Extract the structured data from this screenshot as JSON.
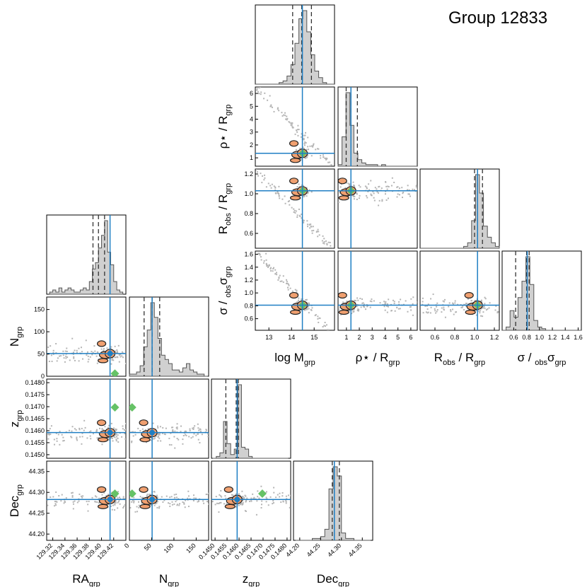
{
  "title": "Group 12833",
  "colors": {
    "truth": "#1f7fc4",
    "hist": "#d0d0d0",
    "hist_edge": "#555555",
    "contour_fill": "#f0a070",
    "contour_edge": "#222222",
    "scatter": "#b5b5b5",
    "group_marker": "#66c266"
  },
  "left_corner": {
    "params": [
      {
        "key": "ra",
        "label": "RA",
        "sub": "grp",
        "lim": [
          129.31,
          129.44
        ],
        "ticks": [
          129.32,
          129.34,
          129.36,
          129.38,
          129.4,
          129.42
        ],
        "tick_labels": [
          "129.32",
          "129.34",
          "129.36",
          "129.38",
          "129.40",
          "129.42"
        ],
        "truth": 129.414,
        "quantiles": [
          129.386,
          129.395,
          129.405
        ],
        "group": 129.422
      },
      {
        "key": "n",
        "label": "N",
        "sub": "grp",
        "lim": [
          0,
          178
        ],
        "ticks": [
          0,
          50,
          100,
          150
        ],
        "tick_labels": [
          "0",
          "50",
          "100",
          "150"
        ],
        "truth": 51,
        "quantiles": [
          33,
          51,
          68
        ],
        "group": 6
      },
      {
        "key": "z",
        "label": "z",
        "sub": "grp",
        "lim": [
          0.14485,
          0.14815
        ],
        "ticks": [
          0.145,
          0.1455,
          0.146,
          0.1465,
          0.147,
          0.1475,
          0.148
        ],
        "tick_labels": [
          "0.1450",
          "0.1455",
          "0.1460",
          "0.1465",
          "0.1470",
          "0.1475",
          "0.1480"
        ],
        "truth": 0.14592,
        "quantiles": [
          0.14545,
          0.14588,
          0.14597
        ],
        "group": 0.14697
      },
      {
        "key": "dec",
        "label": "Dec",
        "sub": "grp",
        "lim": [
          44.185,
          44.375
        ],
        "ticks": [
          44.2,
          44.25,
          44.3,
          44.35
        ],
        "tick_labels": [
          "44.20",
          "44.25",
          "44.30",
          "44.35"
        ],
        "truth": 44.283,
        "quantiles": [
          44.278,
          44.283,
          44.295
        ],
        "group": 44.297
      }
    ]
  },
  "right_corner": {
    "params": [
      {
        "key": "logm",
        "label": "log M",
        "sub": "grp",
        "sym": "",
        "lim": [
          12.4,
          15.9
        ],
        "ticks": [
          13,
          14,
          15
        ],
        "tick_labels": [
          "13",
          "14",
          "15"
        ],
        "truth": 14.48,
        "quantiles": [
          14.05,
          14.45,
          14.88
        ],
        "group": 14.5
      },
      {
        "key": "rho",
        "label": " / R",
        "sub": "grp",
        "sym": "ρ⋆",
        "lim": [
          0.35,
          6.5
        ],
        "ticks": [
          1,
          2,
          3,
          4,
          5,
          6
        ],
        "tick_labels": [
          "1",
          "2",
          "3",
          "4",
          "5",
          "6"
        ],
        "truth": 1.35,
        "quantiles": [
          0.98,
          1.35,
          1.85
        ],
        "group": 1.35
      },
      {
        "key": "robs",
        "label": "R",
        "sub": "obs",
        "label2": " / R",
        "sub2": "grp",
        "sym": "",
        "lim": [
          0.45,
          1.25
        ],
        "ticks": [
          0.6,
          0.8,
          1.0,
          1.2
        ],
        "tick_labels": [
          "0.6",
          "0.8",
          "1.0",
          "1.2"
        ],
        "truth": 1.03,
        "quantiles": [
          1.0,
          1.03,
          1.08
        ],
        "group": 1.03
      },
      {
        "key": "sobs",
        "label": " / ",
        "sub": "obs",
        "sym": "σ",
        "lim": [
          0.42,
          1.65
        ],
        "ticks": [
          0.6,
          0.8,
          1.0,
          1.2,
          1.4,
          1.6
        ],
        "tick_labels": [
          "0.6",
          "0.8",
          "1.0",
          "1.2",
          "1.4",
          "1.6"
        ],
        "truth": 0.81,
        "quantiles": [
          0.63,
          0.8,
          0.84
        ],
        "group": 0.81
      }
    ]
  },
  "chart_data": [
    {
      "type": "scatter",
      "title": "Group 12833",
      "description_kind": "corner plot (posterior) — grp position",
      "params": [
        "RA_grp",
        "N_grp",
        "z_grp",
        "Dec_grp"
      ],
      "histograms": {
        "RA_grp": {
          "bins": [
            129.315,
            129.32,
            129.325,
            129.33,
            129.335,
            129.34,
            129.345,
            129.35,
            129.355,
            129.36,
            129.365,
            129.37,
            129.375,
            129.38,
            129.385,
            129.39,
            129.395,
            129.4,
            129.405,
            129.41,
            129.415,
            129.42,
            129.425,
            129.43,
            129.435
          ],
          "counts": [
            1,
            2,
            1,
            3,
            1,
            2,
            3,
            2,
            1,
            1,
            2,
            3,
            2,
            6,
            12,
            15,
            22,
            28,
            35,
            20,
            14,
            6,
            2,
            1
          ]
        },
        "N_grp": {
          "bins": [
            0,
            8,
            16,
            24,
            32,
            40,
            48,
            56,
            64,
            72,
            80,
            88,
            96,
            104,
            112,
            120,
            128,
            136,
            144,
            152,
            160,
            168,
            176
          ],
          "counts": [
            1,
            1,
            2,
            5,
            14,
            22,
            35,
            28,
            18,
            10,
            8,
            6,
            3,
            3,
            2,
            4,
            6,
            3,
            2,
            1,
            1,
            0
          ]
        },
        "z_grp": {
          "bins": [
            0.1449,
            0.14505,
            0.1452,
            0.14535,
            0.1455,
            0.14565,
            0.1458,
            0.14595,
            0.1461,
            0.14625,
            0.1464,
            0.14655,
            0.1467,
            0.14685,
            0.147,
            0.14715,
            0.1473,
            0.14745,
            0.1476,
            0.14775,
            0.1479,
            0.14805
          ],
          "counts": [
            0,
            1,
            3,
            20,
            8,
            2,
            5,
            40,
            6,
            5,
            1,
            0,
            0,
            0,
            0,
            0,
            0,
            0,
            0,
            0,
            0
          ]
        },
        "Dec_grp": {
          "bins": [
            44.19,
            44.2,
            44.21,
            44.22,
            44.23,
            44.24,
            44.25,
            44.26,
            44.27,
            44.28,
            44.29,
            44.3,
            44.31,
            44.32,
            44.33,
            44.34,
            44.35,
            44.36,
            44.37
          ],
          "counts": [
            0,
            0,
            0,
            0,
            1,
            1,
            2,
            6,
            28,
            40,
            35,
            4,
            1,
            1,
            0,
            0,
            0,
            0
          ]
        }
      },
      "truth": {
        "RA_grp": 129.414,
        "N_grp": 51,
        "z_grp": 0.14592,
        "Dec_grp": 44.283
      },
      "group_values": {
        "RA_grp": 129.422,
        "N_grp": 6,
        "z_grp": 0.14697,
        "Dec_grp": 44.297
      },
      "xlabels": [
        "RA_grp",
        "N_grp",
        "z_grp",
        "Dec_grp"
      ],
      "ylabels": [
        "N_grp",
        "z_grp",
        "Dec_grp"
      ]
    },
    {
      "type": "scatter",
      "title": "Group 12833",
      "description_kind": "corner plot (posterior) — grp properties",
      "params": [
        "log M_grp",
        "rho_star / R_grp",
        "R_obs / R_grp",
        "sigma_obs / sigma_grp"
      ],
      "histograms": {
        "log M_grp": {
          "bins": [
            12.4,
            12.575,
            12.75,
            12.925,
            13.1,
            13.275,
            13.45,
            13.625,
            13.8,
            13.975,
            14.15,
            14.325,
            14.5,
            14.675,
            14.85,
            15.025,
            15.2,
            15.375,
            15.55,
            15.725,
            15.9
          ],
          "counts": [
            0,
            0,
            0,
            0,
            0,
            0,
            1,
            2,
            5,
            12,
            25,
            40,
            45,
            32,
            18,
            8,
            4,
            1,
            0,
            0
          ]
        },
        "rho_star / R_grp": {
          "bins": [
            0.35,
            0.6575,
            0.965,
            1.2725,
            1.58,
            1.8875,
            2.195,
            2.5025,
            2.81,
            3.1175,
            3.425,
            3.7325,
            4.04,
            4.3475,
            4.655,
            4.9625,
            5.27,
            5.5775,
            5.885,
            6.1925,
            6.5
          ],
          "counts": [
            1,
            18,
            45,
            25,
            8,
            4,
            2,
            1,
            1,
            1,
            0,
            1,
            0,
            0,
            0,
            0,
            0,
            0,
            0,
            0
          ]
        },
        "R_obs / R_grp": {
          "bins": [
            0.45,
            0.49,
            0.53,
            0.57,
            0.61,
            0.65,
            0.69,
            0.73,
            0.77,
            0.81,
            0.85,
            0.89,
            0.93,
            0.97,
            1.01,
            1.05,
            1.09,
            1.13,
            1.17,
            1.21,
            1.25
          ],
          "counts": [
            0,
            0,
            0,
            0,
            0,
            0,
            0,
            0,
            0,
            0,
            0,
            1,
            3,
            15,
            40,
            30,
            12,
            6,
            3,
            1
          ]
        },
        "sigma_obs / sigma_grp": {
          "bins": [
            0.42,
            0.4815,
            0.543,
            0.6045,
            0.666,
            0.7275,
            0.789,
            0.8505,
            0.912,
            0.9735,
            1.035,
            1.0965,
            1.158,
            1.2195,
            1.281,
            1.3425,
            1.404,
            1.4655,
            1.527,
            1.5885,
            1.65
          ],
          "counts": [
            0,
            2,
            12,
            8,
            20,
            30,
            45,
            28,
            6,
            2,
            1,
            0,
            0,
            0,
            0,
            0,
            0,
            0,
            0,
            0
          ]
        }
      },
      "truth": {
        "log M_grp": 14.48,
        "rho_star / R_grp": 1.35,
        "R_obs / R_grp": 1.03,
        "sigma_obs / sigma_grp": 0.81
      },
      "group_values": {
        "log M_grp": 14.5,
        "rho_star / R_grp": 1.35
      },
      "xlabels": [
        "log M_grp",
        "ρ⋆ / R_grp",
        "R_obs / R_grp",
        "σ_obs / σ_grp"
      ],
      "ylabels": [
        "ρ⋆ / R_grp",
        "R_obs / R_grp",
        "σ_obs / σ_grp"
      ]
    }
  ]
}
